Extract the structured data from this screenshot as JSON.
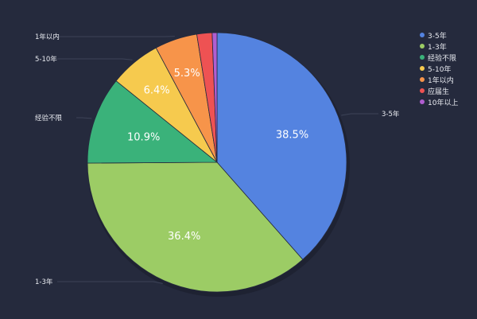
{
  "chart_data": {
    "type": "pie",
    "title": "",
    "categories": [
      "3-5年",
      "1-3年",
      "经验不限",
      "5-10年",
      "1年以内",
      "应届生",
      "10年以上"
    ],
    "values": [
      38.5,
      36.4,
      10.9,
      6.4,
      5.3,
      1.9,
      0.6
    ],
    "data_labels": [
      "38.5%",
      "36.4%",
      "10.9%",
      "6.4%",
      "5.3%",
      "",
      ""
    ],
    "colors": [
      "#5483e0",
      "#9ccc65",
      "#3ab27a",
      "#f6ca4e",
      "#f7944a",
      "#ee5253",
      "#b05ed1"
    ],
    "legend_position": "top-right"
  }
}
